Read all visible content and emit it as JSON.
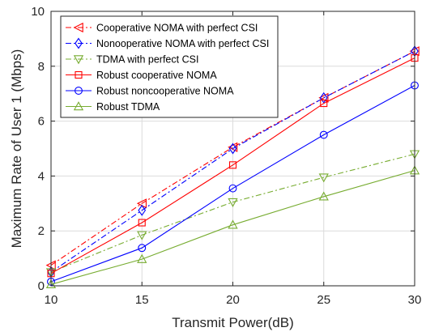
{
  "chart_data": {
    "type": "line",
    "title": "",
    "xlabel": "Transmit Power(dB)",
    "ylabel": "Maximum Rate of User 1 (Mbps)",
    "xlim": [
      10,
      30
    ],
    "ylim": [
      0,
      10
    ],
    "xticks": [
      "10",
      "15",
      "20",
      "25",
      "30"
    ],
    "yticks": [
      "0",
      "2",
      "4",
      "6",
      "8",
      "10"
    ],
    "grid": true,
    "legend_position": "top-left",
    "x": [
      10,
      15,
      20,
      25,
      30
    ],
    "series": [
      {
        "name": "Cooperative NOMA with perfect CSI",
        "color": "#ff0000",
        "line_style": "dashdot",
        "marker": "triangle-left",
        "values": [
          0.75,
          3.0,
          5.05,
          6.85,
          8.55
        ]
      },
      {
        "name": "Nonooperative NOMA with perfect CSI",
        "color": "#0000ff",
        "line_style": "dashdot",
        "marker": "diamond",
        "values": [
          0.5,
          2.75,
          5.0,
          6.85,
          8.55
        ]
      },
      {
        "name": "TDMA with perfect CSI",
        "color": "#77ac30",
        "line_style": "dashdot",
        "marker": "triangle-down",
        "values": [
          0.5,
          1.85,
          3.05,
          3.95,
          4.8
        ]
      },
      {
        "name": "Robust cooperative NOMA",
        "color": "#ff0000",
        "line_style": "solid",
        "marker": "square",
        "values": [
          0.45,
          2.3,
          4.4,
          6.65,
          8.3
        ]
      },
      {
        "name": "Robust noncooperative NOMA",
        "color": "#0000ff",
        "line_style": "solid",
        "marker": "circle",
        "values": [
          0.15,
          1.38,
          3.55,
          5.5,
          7.3
        ]
      },
      {
        "name": "Robust TDMA",
        "color": "#77ac30",
        "line_style": "solid",
        "marker": "triangle-up",
        "values": [
          0.05,
          0.97,
          2.22,
          3.25,
          4.2
        ]
      }
    ]
  }
}
